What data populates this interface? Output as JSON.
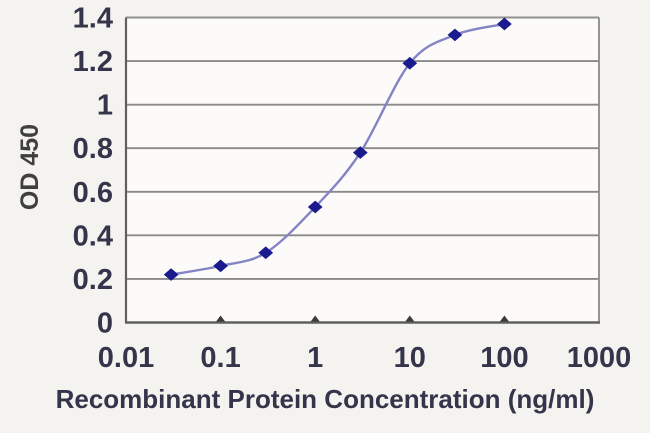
{
  "chart_data": {
    "type": "line",
    "title": "",
    "xlabel": "Recombinant Protein Concentration (ng/ml)",
    "ylabel": "OD 450",
    "x_scale": "log",
    "xlim": [
      0.01,
      1000
    ],
    "ylim": [
      0,
      1.4
    ],
    "x": [
      0.03,
      0.1,
      0.3,
      1,
      3,
      10,
      30,
      100
    ],
    "y": [
      0.22,
      0.26,
      0.32,
      0.53,
      0.78,
      1.19,
      1.32,
      1.37
    ],
    "x_tick_values": [
      0.01,
      0.1,
      1,
      10,
      100,
      1000
    ],
    "x_tick_labels": [
      "0.01",
      "0.1",
      "1",
      "10",
      "100",
      "1000"
    ],
    "x_tick_marks": [
      0.1,
      1,
      10,
      100
    ],
    "y_tick_values": [
      0,
      0.2,
      0.4,
      0.6,
      0.8,
      1,
      1.2,
      1.4
    ],
    "y_tick_labels": [
      "0",
      "0.2",
      "0.4",
      "0.6",
      "0.8",
      "1",
      "1.2",
      "1.4"
    ],
    "grid": "horizontal",
    "legend": "none",
    "marker": "diamond",
    "line_smooth": true,
    "colors": {
      "line": "#8383c6",
      "marker": "#1b1b8f",
      "grid": "#8a8a8a",
      "border": "#909090",
      "axis": "#5f5f5f",
      "tick_mark": "#3a3a3a",
      "tick_text": "#34344a",
      "axis_title": "#34344a",
      "y_axis_label": "#3f3f3f",
      "plot_bg": "#fcfbf9",
      "page_bg": "#f5f3f0"
    }
  }
}
